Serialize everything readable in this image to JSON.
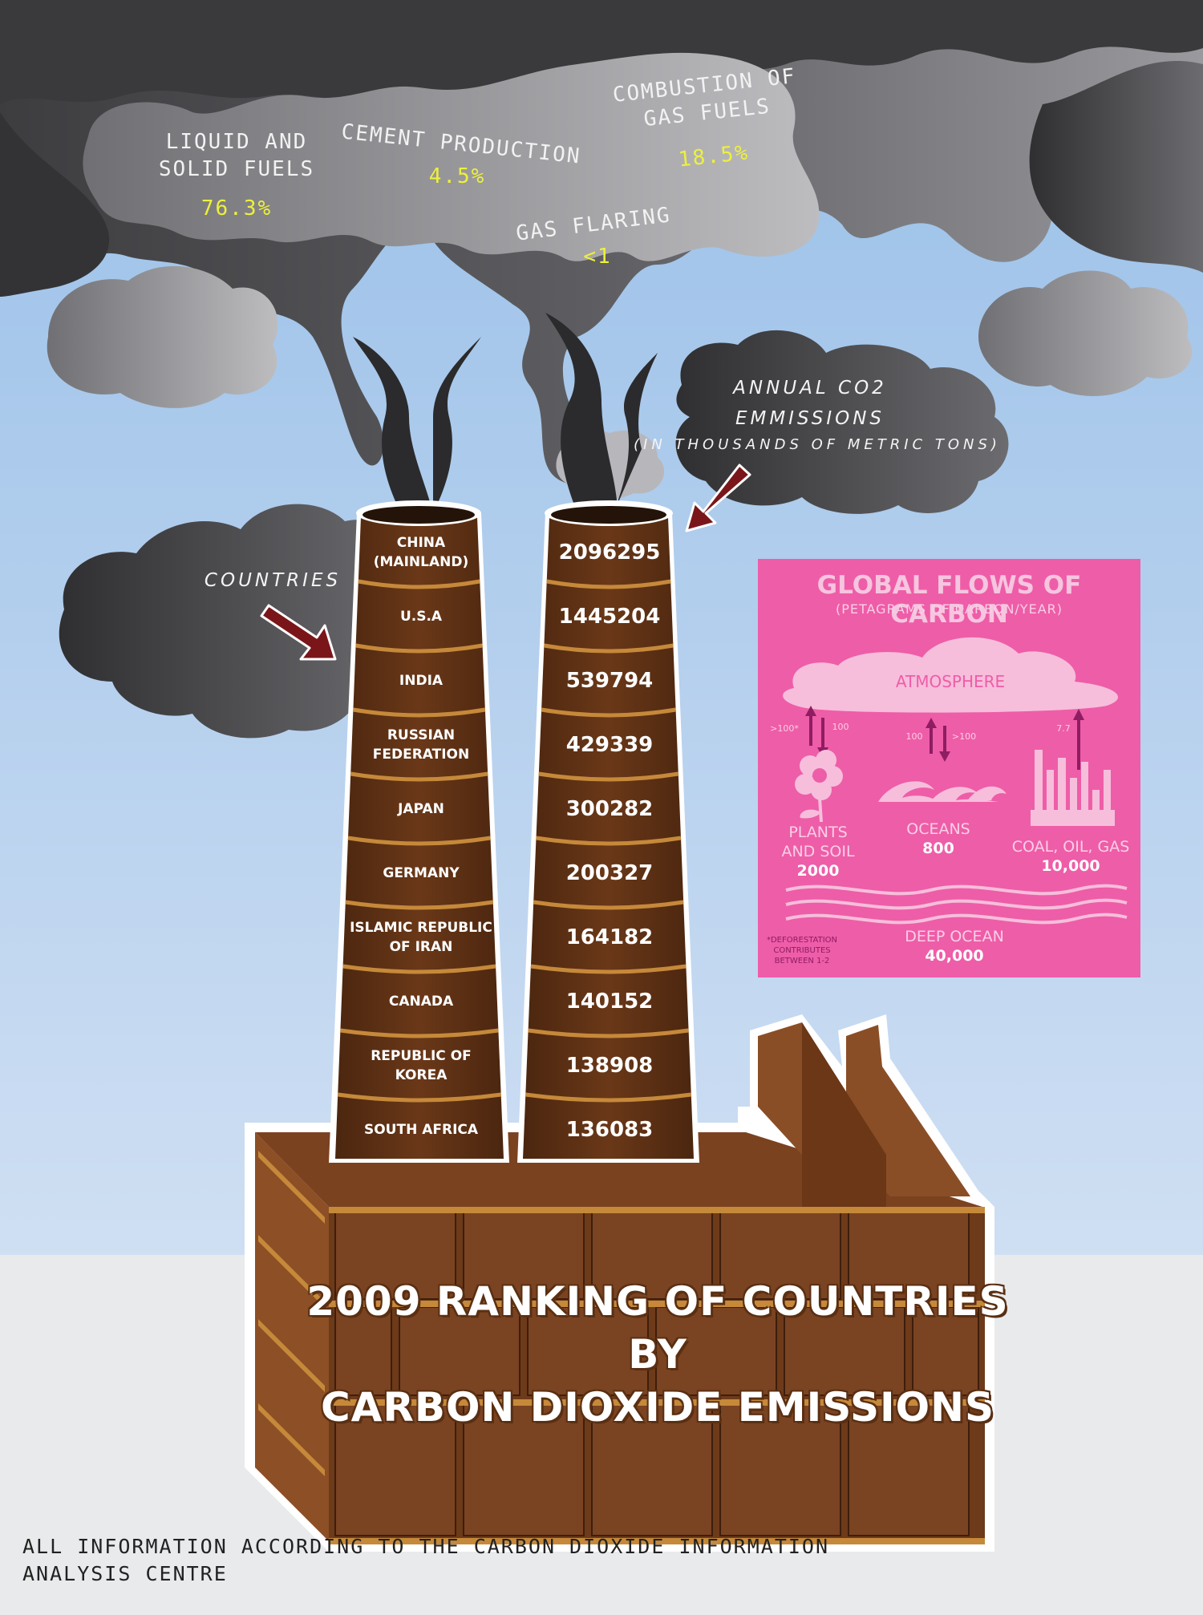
{
  "chart_data": {
    "type": "table",
    "title": "2009 RANKING OF COUNTRIES BY CARBON DIOXIDE EMISSIONS",
    "columns": [
      "COUNTRIES",
      "ANNUAL CO2 EMMISSIONS (IN THOUSANDS OF METRIC TONS)"
    ],
    "categories": [
      "CHINA (MAINLAND)",
      "U.S.A",
      "INDIA",
      "RUSSIAN FEDERATION",
      "JAPAN",
      "GERMANY",
      "ISLAMIC REPUBLIC OF IRAN",
      "CANADA",
      "REPUBLIC OF KOREA",
      "SOUTH AFRICA"
    ],
    "values": [
      2096295,
      1445204,
      539794,
      429339,
      300282,
      200327,
      164182,
      140152,
      138908,
      136083
    ]
  },
  "countries": [
    {
      "line1": "CHINA",
      "line2": "(MAINLAND)",
      "value": "2096295"
    },
    {
      "line1": "U.S.A",
      "line2": "",
      "value": "1445204"
    },
    {
      "line1": "INDIA",
      "line2": "",
      "value": "539794"
    },
    {
      "line1": "RUSSIAN",
      "line2": "FEDERATION",
      "value": "429339"
    },
    {
      "line1": "JAPAN",
      "line2": "",
      "value": "300282"
    },
    {
      "line1": "GERMANY",
      "line2": "",
      "value": "200327"
    },
    {
      "line1": "ISLAMIC REPUBLIC",
      "line2": "OF IRAN",
      "value": "164182"
    },
    {
      "line1": "CANADA",
      "line2": "",
      "value": "140152"
    },
    {
      "line1": "REPUBLIC OF",
      "line2": "KOREA",
      "value": "138908"
    },
    {
      "line1": "SOUTH AFRICA",
      "line2": "",
      "value": "136083"
    }
  ],
  "sources": {
    "liquid_solid": {
      "line1": "LIQUID AND",
      "line2": "SOLID FUELS",
      "pct": "76.3%"
    },
    "cement": {
      "line1": "CEMENT PRODUCTION",
      "pct": "4.5%"
    },
    "gas_comb": {
      "line1": "COMBUSTION OF",
      "line2": "GAS FUELS",
      "pct": "18.5%"
    },
    "flaring": {
      "line1": "GAS FLARING",
      "pct": "<1"
    }
  },
  "labels": {
    "annual_line1": "ANNUAL CO2",
    "annual_line2": "EMMISSIONS",
    "annual_line3": "(IN THOUSANDS OF METRIC TONS)",
    "countries": "COUNTRIES",
    "title_line1": "2009 RANKING OF COUNTRIES BY",
    "title_line2": "CARBON DIOXIDE EMISSIONS",
    "footer_line1": "ALL INFORMATION ACCORDING TO THE CARBON DIOXIDE INFORMATION",
    "footer_line2": "ANALYSIS CENTRE"
  },
  "carbon_panel": {
    "title": "GLOBAL FLOWS OF CARBON",
    "subtitle": "(PETAGRAMS OF CARBON/YEAR)",
    "atmosphere": "ATMOSPHERE",
    "plants_flow_up": ">100*",
    "plants_flow_down": "100",
    "oceans_flow_up": "100",
    "oceans_flow_down": ">100",
    "fossil_flow": "7.7",
    "plants_line1": "PLANTS",
    "plants_line2": "AND SOIL",
    "plants_value": "2000",
    "oceans": "OCEANS",
    "oceans_value": "800",
    "fossil": "COAL, OIL, GAS",
    "fossil_value": "10,000",
    "deep_ocean": "DEEP OCEAN",
    "deep_ocean_value": "40,000",
    "note_line1": "*DEFORESTATION",
    "note_line2": "CONTRIBUTES",
    "note_line3": "BETWEEN 1-2"
  },
  "colors": {
    "sky_top": "#a8c9ea",
    "sky_bottom": "#c9dcf2",
    "ground": "#e9eaec",
    "smoke": "#4a4a4e",
    "brick": "#7a4322",
    "mortar": "#c6893a",
    "chimney": "#5a2f14",
    "panel_pink": "#ee5da8",
    "arrow_red": "#7a1619",
    "pct_yellow": "#eef03a"
  }
}
